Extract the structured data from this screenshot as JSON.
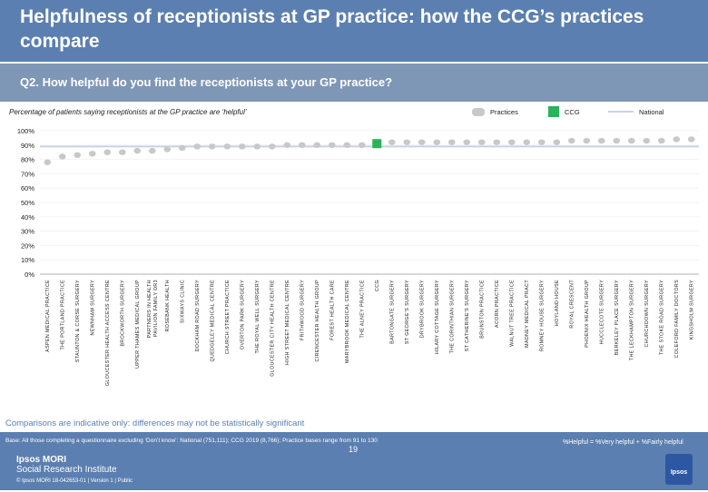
{
  "header": {
    "title": "Helpfulness of receptionists at GP practice: how the CCG’s practices compare"
  },
  "question": "Q2. How helpful do you find the receptionists at your GP practice?",
  "subtitle": "Percentage of patients saying receptionists at the GP practice are ‘helpful’",
  "legend": {
    "practices": "Practices",
    "ccg": "CCG",
    "national": "National"
  },
  "colors": {
    "header_bg": "#5b7fb0",
    "question_bg": "#7f97b7",
    "practice_marker": "#c8c8c8",
    "ccg_bar": "#29b35a",
    "national_line": "#c8d2e6"
  },
  "chart_data": {
    "type": "scatter",
    "ylim": [
      0,
      100
    ],
    "yticks": [
      "0%",
      "10%",
      "20%",
      "30%",
      "40%",
      "50%",
      "60%",
      "70%",
      "80%",
      "90%",
      "100%"
    ],
    "national": 89,
    "ccg_index": 22,
    "categories": [
      "ASPEN MEDICAL PRACTICE",
      "THE PORTLAND PRACTICE",
      "STAUNTON & CORSE SURGERY",
      "NEWNHAM SURGERY",
      "GLOUCESTER HEALTH ACCESS CENTRE",
      "BROCKWORTH SURGERY",
      "UPPER THAMES MEDICAL GROUP",
      "PARTNERS IN HEALTH  PAVILION FAMILY DR3",
      "ROSEBANK HEALTH",
      "SIXWAYS CLINIC",
      "DOCKHAM ROAD SURGERY",
      "QUEDGELEY MEDICAL CENTRE",
      "CHURCH STREET PRACTICE",
      "OVERTON PARK SURGERY",
      "THE ROYAL WELL SURGERY",
      "GLOUCESTER CITY HEALTH CENTRE",
      "HIGH STREET MEDICAL CENTRE",
      "FRITHWOOD SURGERY",
      "CIRENCESTER HEALTH GROUP",
      "FOREST HEALTH CARE",
      "MARYBROOK MEDICAL CENTRE",
      "THE ALNEY PRACTICE",
      "CCG",
      "BARTONGATE SURGERY",
      "ST GEORGE'S SURGERY",
      "DRYBROOK SURGERY",
      "HILARY COTTAGE SURGERY",
      "THE CORINTHIAN SURGERY",
      "ST CATHERINE'S SURGERY",
      "BRUNSTON PRACTICE",
      "ACORN PRACTICE",
      "WALNUT TREE PRACTICE",
      "MADNEY MEDICAL PRACT",
      "ROMNEY HOUSE SURGERY",
      "HOYLAND HOUSE",
      "ROYAL CRESCENT",
      "PHOENIX HEALTH GROUP",
      "HUCCLECOTE SURGERY",
      "BERKELEY PLACE SURGERY",
      "THE LECKHAMPTON SURGERY",
      "CHURCHDOWN SURGERY",
      "THE STOKE ROAD SURGERY",
      "COLEFORD FAMILY DOCTORS",
      "KINGSHOLM SURGERY"
    ],
    "values": [
      78,
      82,
      83,
      84,
      85,
      85,
      86,
      86,
      87,
      88,
      89,
      89,
      89,
      89,
      89,
      89,
      90,
      90,
      90,
      90,
      90,
      90,
      91,
      92,
      92,
      92,
      92,
      92,
      92,
      92,
      92,
      92,
      92,
      92,
      92,
      93,
      93,
      93,
      93,
      93,
      93,
      93,
      94,
      94
    ]
  },
  "footnote": "Comparisons are indicative only: differences may not be statistically significant",
  "footer": {
    "base": "Base: All those completing a questionnaire excluding ‘Don’t know’: National (751,111); CCG 2019 (8,766); Practice bases range from 91 to 130",
    "definition": "%Helpful = %Very helpful + %Fairly helpful",
    "page_number": "19",
    "logo_line1": "Ipsos MORI",
    "logo_line2": "Social Research Institute",
    "copyright": "© Ipsos MORI      18-042653-01 | Version 1 | Public",
    "badge": "Ipsos"
  }
}
